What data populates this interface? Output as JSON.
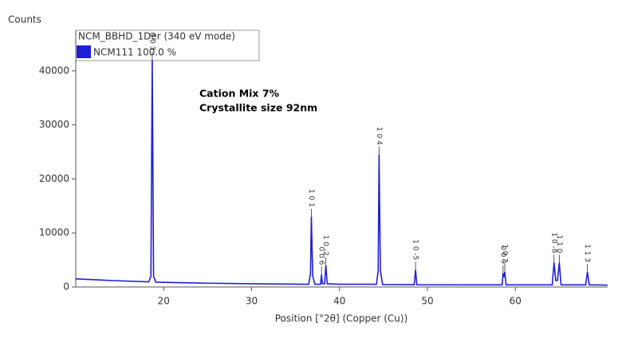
{
  "chart_data": {
    "type": "line",
    "y_label": "Counts",
    "x_label": "Position [°2θ] (Copper (Cu))",
    "legend_title": "NCM_BBHD_1Der (340 eV mode)",
    "annotations": [
      "Cation Mix 7%",
      "Crystallite size 92nm"
    ],
    "x": [
      10,
      14,
      18.3,
      18.55,
      18.7,
      18.85,
      19.1,
      25,
      30,
      36.5,
      36.7,
      36.8,
      36.95,
      37.2,
      37.85,
      37.95,
      38.05,
      38.3,
      38.45,
      38.6,
      40,
      44.2,
      44.4,
      44.5,
      44.65,
      44.9,
      48.5,
      48.65,
      48.8,
      55,
      58.5,
      58.6,
      58.7,
      58.8,
      58.95,
      64.2,
      64.4,
      64.6,
      64.8,
      65.0,
      65.2,
      68.0,
      68.2,
      68.4,
      70.5
    ],
    "series": [
      {
        "name": "NCM111 100.0 %",
        "color": "#1f1fd6",
        "values": [
          1500,
          1200,
          950,
          2000,
          42000,
          2000,
          900,
          700,
          600,
          500,
          2500,
          13000,
          2000,
          500,
          500,
          2300,
          600,
          600,
          4000,
          600,
          500,
          500,
          3000,
          24500,
          3000,
          450,
          420,
          3200,
          420,
          400,
          400,
          2500,
          1800,
          2800,
          400,
          400,
          4500,
          1200,
          1200,
          4500,
          400,
          400,
          2800,
          400,
          350
        ]
      }
    ],
    "peak_labels": [
      {
        "label": "0 0 3",
        "x": 18.7,
        "y": 42000
      },
      {
        "label": "1 0 1",
        "x": 36.8,
        "y": 13000
      },
      {
        "label": "0 0 6",
        "x": 37.95,
        "y": 2300
      },
      {
        "label": "1 0 -2",
        "x": 38.45,
        "y": 4000
      },
      {
        "label": "1 0 4",
        "x": 44.5,
        "y": 24500
      },
      {
        "label": "1 0 -5",
        "x": 48.65,
        "y": 3200
      },
      {
        "label": "0 0 9",
        "x": 58.6,
        "y": 2500
      },
      {
        "label": "1 0 7",
        "x": 58.8,
        "y": 2800
      },
      {
        "label": "1 0 -8",
        "x": 64.4,
        "y": 4500
      },
      {
        "label": "1 1 0",
        "x": 65.0,
        "y": 4500
      },
      {
        "label": "1 1 3",
        "x": 68.2,
        "y": 2800
      }
    ],
    "xlim": [
      10,
      70.5
    ],
    "ylim": [
      0,
      47500
    ],
    "xticks": [
      20,
      30,
      40,
      50,
      60
    ],
    "yticks": [
      0,
      10000,
      20000,
      30000,
      40000
    ]
  }
}
